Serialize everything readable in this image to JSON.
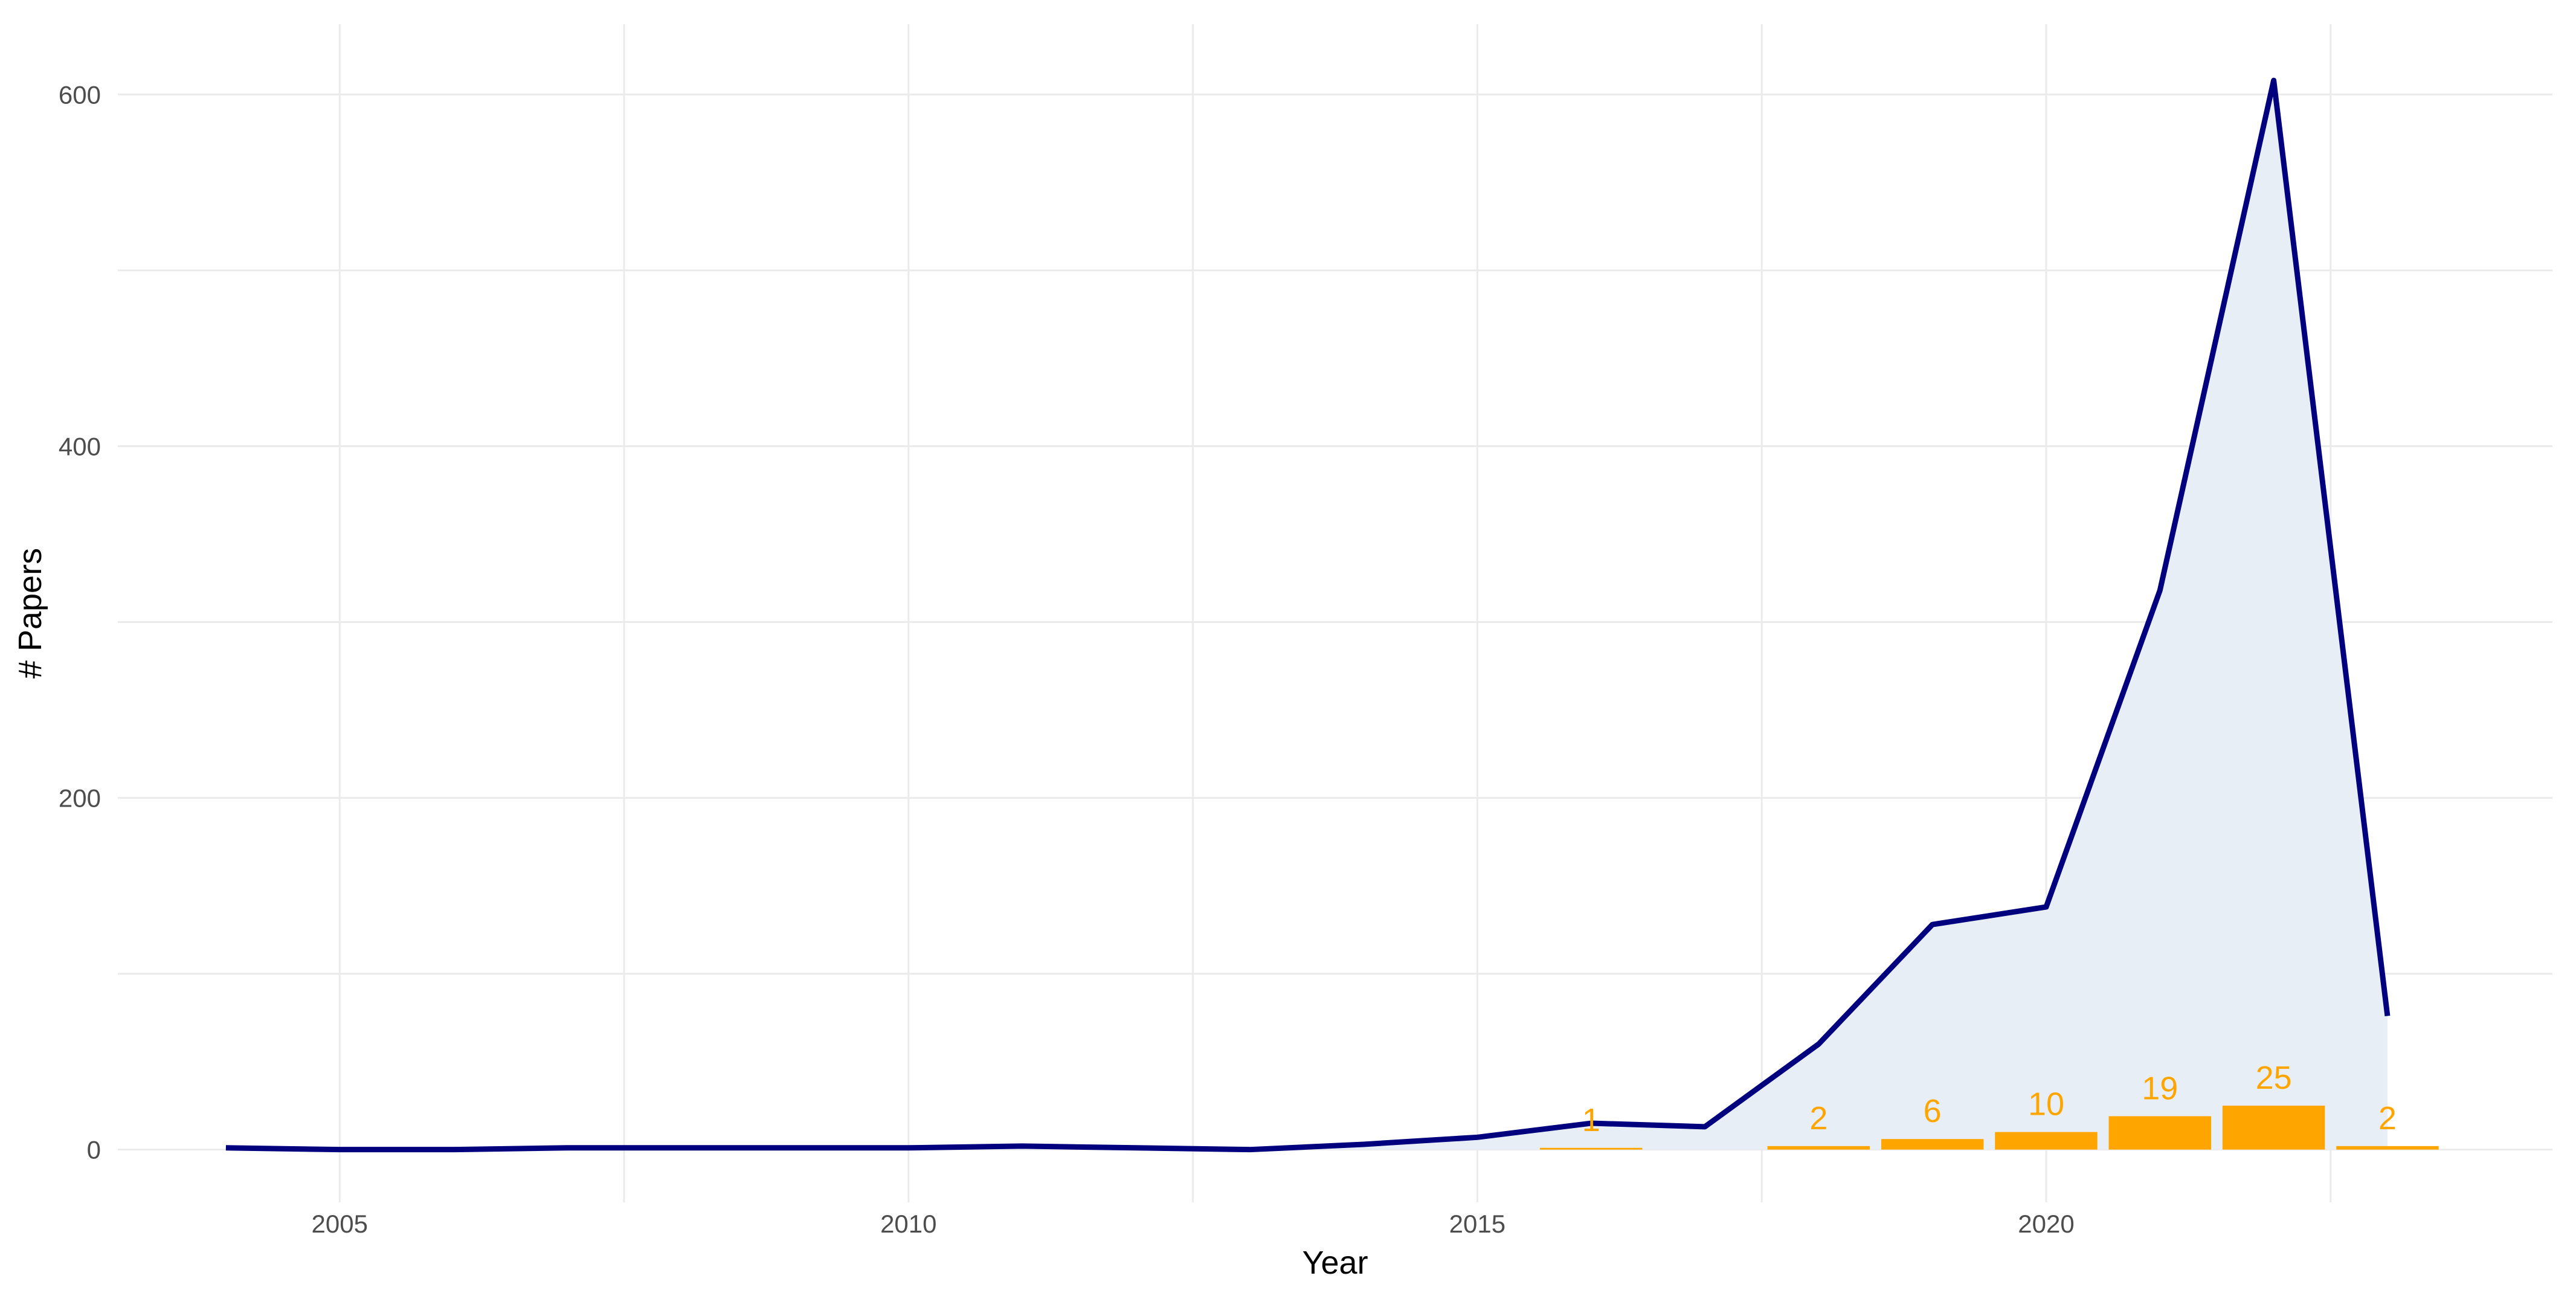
{
  "chart_data": {
    "type": "line",
    "title": "",
    "xlabel": "Year",
    "ylabel": "# Papers",
    "xlim": [
      2003.05,
      2024.45
    ],
    "ylim": [
      -30,
      640
    ],
    "x_ticks": [
      2005,
      2010,
      2015,
      2020
    ],
    "y_ticks": [
      0,
      200,
      400,
      600
    ],
    "grid": true,
    "legend": "none",
    "colors": {
      "line": "#00007f",
      "area": "#e8eef6",
      "bars": "#ffa500",
      "grid": "#ebebeb",
      "tick_text": "#4d4d4d"
    },
    "series": [
      {
        "type": "line",
        "x": [
          2004,
          2005,
          2006,
          2007,
          2008,
          2009,
          2010,
          2011,
          2012,
          2013,
          2014,
          2015,
          2016,
          2017,
          2018,
          2019,
          2020,
          2021,
          2022,
          2023
        ],
        "values": [
          1,
          0,
          0,
          1,
          1,
          1,
          1,
          2,
          1,
          0,
          3,
          7,
          15,
          13,
          60,
          128,
          138,
          318,
          608,
          76
        ]
      },
      {
        "type": "bar",
        "x": [
          2016,
          2018,
          2019,
          2020,
          2021,
          2022,
          2023
        ],
        "values": [
          1,
          2,
          6,
          10,
          19,
          25,
          2
        ],
        "labels": [
          "1",
          "2",
          "6",
          "10",
          "19",
          "25",
          "2"
        ]
      }
    ]
  }
}
